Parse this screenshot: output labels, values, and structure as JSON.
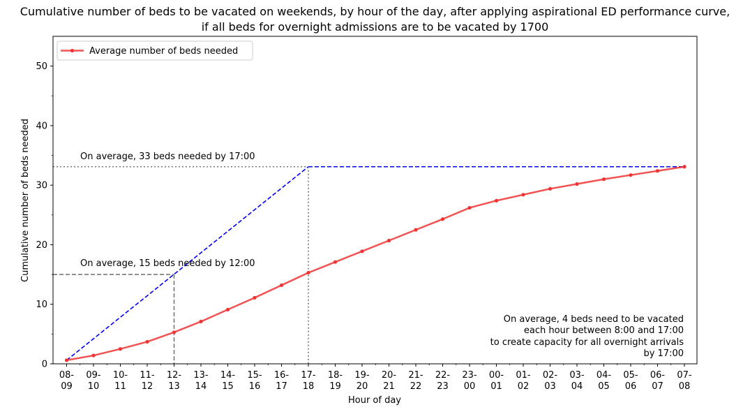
{
  "chart_data": {
    "type": "line",
    "title_line1": "Cumulative number of beds to be vacated on weekends, by hour of the day, after applying aspirational ED performance curve,",
    "title_line2": "if all beds for overnight admissions are to be vacated by 1700",
    "xlabel": "Hour of day",
    "ylabel": "Cumulative number of beds needed",
    "categories": [
      [
        "08-",
        "09"
      ],
      [
        "09-",
        "10"
      ],
      [
        "10-",
        "11"
      ],
      [
        "11-",
        "12"
      ],
      [
        "12-",
        "13"
      ],
      [
        "13-",
        "14"
      ],
      [
        "14-",
        "15"
      ],
      [
        "15-",
        "16"
      ],
      [
        "16-",
        "17"
      ],
      [
        "17-",
        "18"
      ],
      [
        "18-",
        "19"
      ],
      [
        "19-",
        "20"
      ],
      [
        "20-",
        "21"
      ],
      [
        "21-",
        "22"
      ],
      [
        "22-",
        "23"
      ],
      [
        "23-",
        "00"
      ],
      [
        "00-",
        "01"
      ],
      [
        "01-",
        "02"
      ],
      [
        "02-",
        "03"
      ],
      [
        "03-",
        "04"
      ],
      [
        "04-",
        "05"
      ],
      [
        "05-",
        "06"
      ],
      [
        "06-",
        "07"
      ],
      [
        "07-",
        "08"
      ]
    ],
    "ylim": [
      0,
      55
    ],
    "yticks": [
      0,
      10,
      20,
      30,
      40,
      50
    ],
    "legend": {
      "location": "top-left",
      "label": "Average number of beds needed"
    },
    "series": [
      {
        "name": "Average number of beds needed",
        "color": "#f03434",
        "values": [
          0.6,
          1.4,
          2.5,
          3.7,
          5.3,
          7.1,
          9.1,
          11.1,
          13.2,
          15.3,
          17.1,
          18.9,
          20.7,
          22.5,
          24.3,
          26.2,
          27.4,
          28.4,
          29.4,
          30.2,
          31.0,
          31.7,
          32.4,
          33.1
        ]
      }
    ],
    "reference_lines": {
      "color": "#0000ee",
      "ramp": {
        "from": [
          "08-09",
          0.6
        ],
        "to": [
          "17-18",
          33.1
        ]
      },
      "plateau": {
        "from": [
          "17-18",
          33.1
        ],
        "to": [
          "07-08",
          33.1
        ]
      },
      "noon_value": 15,
      "evening_value": 33.1
    },
    "annotations": {
      "noon": "On average, 15 beds needed by 12:00",
      "evening": "On average, 33 beds needed by 17:00",
      "note_lines": [
        "On average, 4 beds need to be vacated",
        "each hour between 8:00 and 17:00",
        "to create capacity for all overnight arrivals",
        "by 17:00"
      ]
    }
  }
}
